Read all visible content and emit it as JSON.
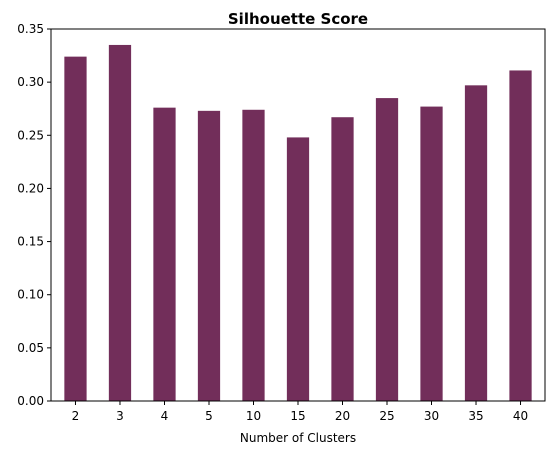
{
  "chart_data": {
    "type": "bar",
    "title": "Silhouette Score",
    "xlabel": "Number of Clusters",
    "ylabel": "",
    "categories": [
      "2",
      "3",
      "4",
      "5",
      "10",
      "15",
      "20",
      "25",
      "30",
      "35",
      "40"
    ],
    "values": [
      0.324,
      0.335,
      0.276,
      0.273,
      0.274,
      0.248,
      0.267,
      0.285,
      0.277,
      0.297,
      0.311
    ],
    "ylim": [
      0,
      0.35
    ],
    "yticks": [
      0.0,
      0.05,
      0.1,
      0.15,
      0.2,
      0.25,
      0.3,
      0.35
    ],
    "ytick_labels": [
      "0.00",
      "0.05",
      "0.10",
      "0.15",
      "0.20",
      "0.25",
      "0.30",
      "0.35"
    ],
    "bar_color": "#722e5a",
    "grid": false,
    "legend": "none"
  }
}
